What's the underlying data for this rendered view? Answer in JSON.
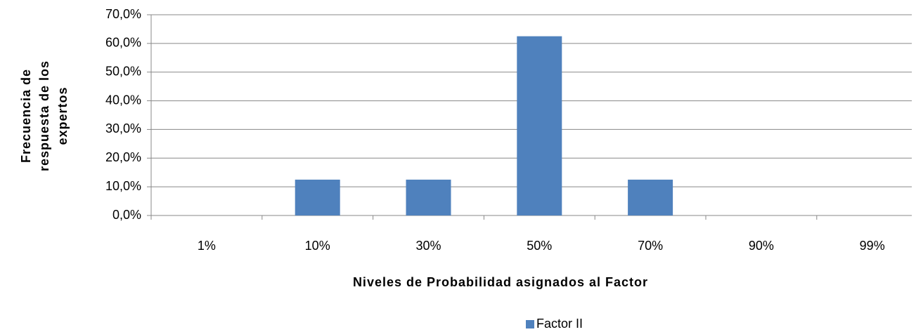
{
  "chart_data": {
    "type": "bar",
    "categories": [
      "1%",
      "10%",
      "30%",
      "50%",
      "70%",
      "90%",
      "99%"
    ],
    "series": [
      {
        "name": "Factor II",
        "color": "#4f81bd",
        "values": [
          0,
          12.5,
          12.5,
          62.5,
          12.5,
          0,
          0
        ]
      }
    ],
    "ylim": [
      0,
      70
    ],
    "yticks": [
      {
        "value": 0,
        "label": "0,0%"
      },
      {
        "value": 10,
        "label": "10,0%"
      },
      {
        "value": 20,
        "label": "20,0%"
      },
      {
        "value": 30,
        "label": "30,0%"
      },
      {
        "value": 40,
        "label": "40,0%"
      },
      {
        "value": 50,
        "label": "50,0%"
      },
      {
        "value": 60,
        "label": "60,0%"
      },
      {
        "value": 70,
        "label": "70,0%"
      }
    ],
    "ylabel": [
      "Frecuencia de",
      "respuesta de los",
      "expertos"
    ],
    "xlabel": "Niveles de Probabilidad asignados al Factor",
    "grid": true,
    "legend": "bottom"
  }
}
